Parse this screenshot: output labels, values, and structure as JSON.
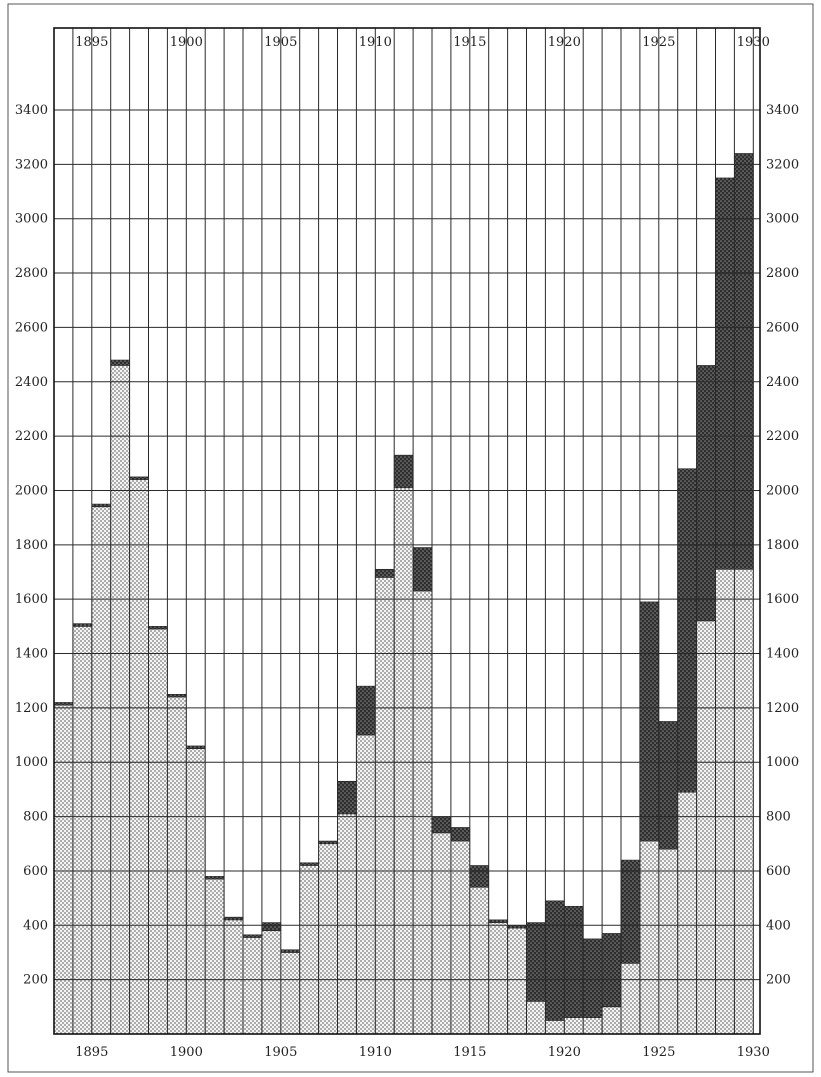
{
  "chart_data": {
    "type": "bar",
    "stacked": true,
    "x_ticks": [
      "1895",
      "1900",
      "1905",
      "1910",
      "1915",
      "1920",
      "1925",
      "1930"
    ],
    "y_ticks": [
      "200",
      "400",
      "600",
      "800",
      "1000",
      "1200",
      "1400",
      "1600",
      "1800",
      "2000",
      "2200",
      "2400",
      "2600",
      "2800",
      "3000",
      "3200",
      "3400"
    ],
    "ylim": [
      0,
      3400
    ],
    "grid": true,
    "years": [
      1893,
      1894,
      1895,
      1896,
      1897,
      1898,
      1899,
      1900,
      1901,
      1902,
      1903,
      1904,
      1905,
      1906,
      1907,
      1908,
      1909,
      1910,
      1911,
      1912,
      1913,
      1914,
      1915,
      1916,
      1917,
      1918,
      1919,
      1920,
      1921,
      1922,
      1923,
      1924,
      1925,
      1926,
      1927,
      1928,
      1929
    ],
    "series": [
      {
        "pattern": "light-dotted",
        "color": "#f3f3f3",
        "values": [
          1210,
          1500,
          1940,
          2460,
          2040,
          1490,
          1240,
          1050,
          570,
          420,
          355,
          380,
          300,
          620,
          700,
          810,
          1100,
          1680,
          2010,
          1630,
          740,
          710,
          540,
          410,
          390,
          120,
          50,
          60,
          60,
          100,
          260,
          710,
          680,
          890,
          1520,
          1710,
          1710
        ]
      },
      {
        "pattern": "dark-dotted",
        "color": "#3a3a3a",
        "values": [
          10,
          10,
          10,
          20,
          10,
          10,
          10,
          10,
          10,
          10,
          10,
          30,
          10,
          10,
          10,
          120,
          180,
          30,
          120,
          160,
          60,
          50,
          80,
          10,
          10,
          290,
          440,
          410,
          290,
          270,
          380,
          880,
          470,
          1190,
          940,
          1440,
          1530
        ]
      }
    ]
  }
}
